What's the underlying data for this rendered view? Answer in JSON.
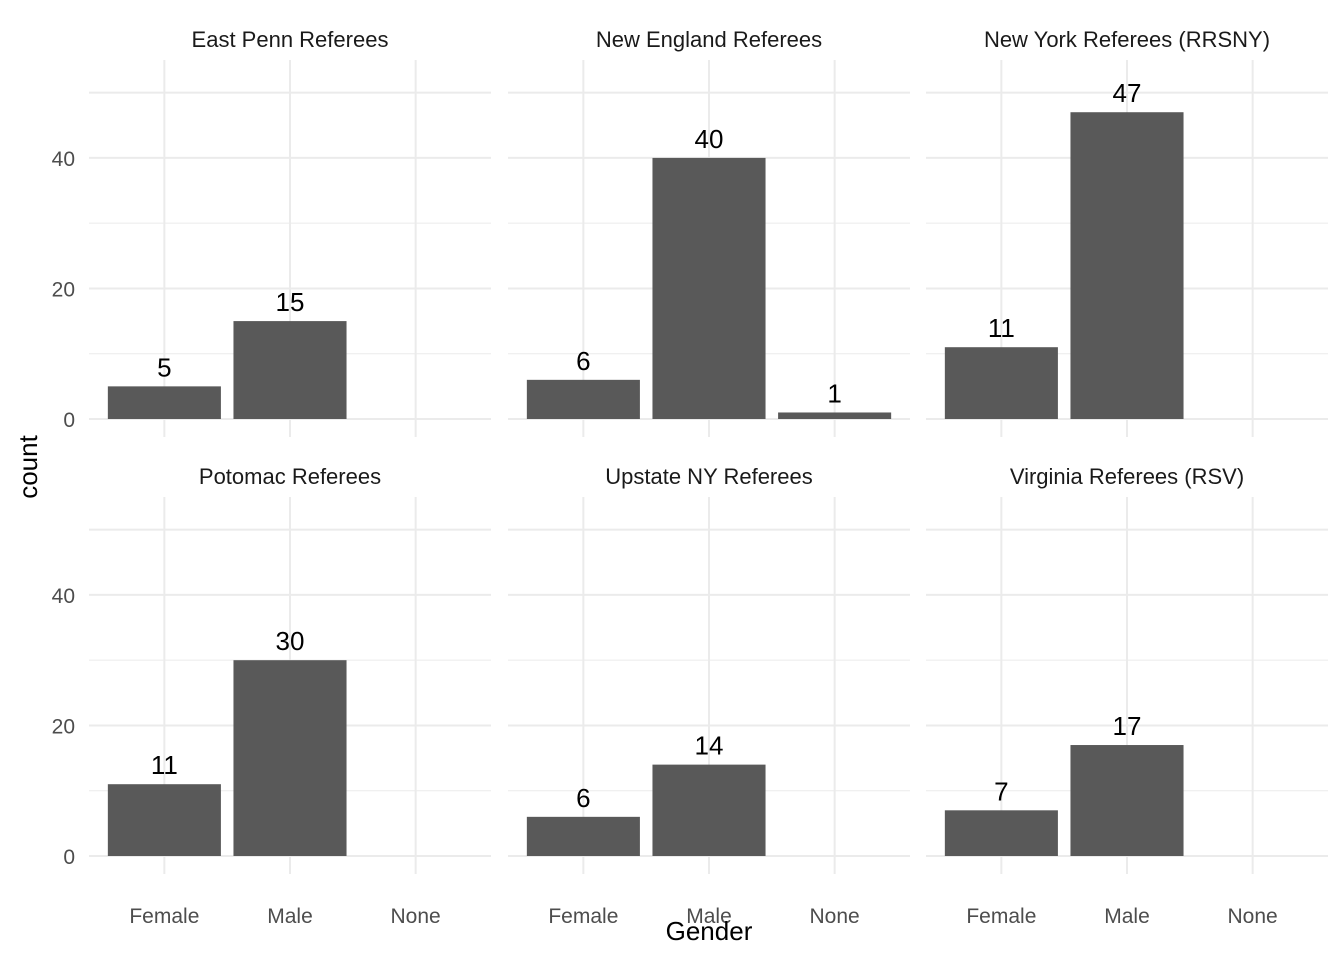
{
  "chart_data": {
    "type": "bar",
    "facet": "wrap",
    "categories": [
      "Female",
      "Male",
      "None"
    ],
    "xlabel": "Gender",
    "ylabel": "count",
    "ylim": [
      0,
      55
    ],
    "yticks": [
      0,
      20,
      40
    ],
    "grid": true,
    "legend": "none",
    "bar_color": "#595959",
    "panels": [
      {
        "title": "East Penn Referees",
        "values": [
          5,
          15,
          null
        ]
      },
      {
        "title": "New England Referees",
        "values": [
          6,
          40,
          1
        ]
      },
      {
        "title": "New York Referees (RRSNY)",
        "values": [
          11,
          47,
          null
        ]
      },
      {
        "title": "Potomac Referees",
        "values": [
          11,
          30,
          null
        ]
      },
      {
        "title": "Upstate NY Referees",
        "values": [
          6,
          14,
          null
        ]
      },
      {
        "title": "Virginia Referees (RSV)",
        "values": [
          7,
          17,
          null
        ]
      }
    ]
  }
}
